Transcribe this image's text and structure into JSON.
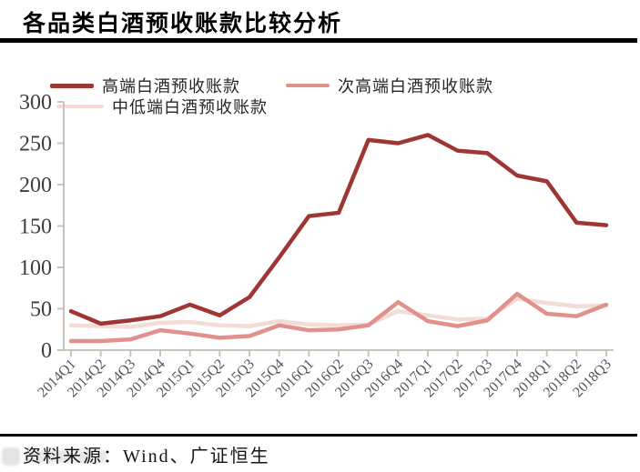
{
  "title": "各品类白酒预收账款比较分析",
  "source_label": "资料来源：Wind、广证恒生",
  "chart_data": {
    "type": "line",
    "title": "各品类白酒预收账款比较分析",
    "categories": [
      "2014Q1",
      "2014Q2",
      "2014Q3",
      "2014Q4",
      "2015Q1",
      "2015Q2",
      "2015Q3",
      "2015Q4",
      "2016Q1",
      "2016Q2",
      "2016Q3",
      "2016Q4",
      "2017Q1",
      "2017Q2",
      "2017Q3",
      "2017Q4",
      "2018Q1",
      "2018Q2",
      "2018Q3"
    ],
    "series": [
      {
        "name": "高端白酒预收账款",
        "color": "#A03634",
        "line_width": 4.5,
        "values": [
          47,
          32,
          36,
          41,
          55,
          42,
          64,
          112,
          162,
          166,
          254,
          250,
          260,
          241,
          238,
          211,
          204,
          154,
          151
        ]
      },
      {
        "name": "次高端白酒预收账款",
        "color": "#E0918C",
        "line_width": 4.5,
        "values": [
          11,
          11,
          13,
          24,
          20,
          15,
          17,
          30,
          24,
          25,
          30,
          58,
          35,
          29,
          36,
          68,
          44,
          41,
          55
        ]
      },
      {
        "name": "中低端白酒预收账款",
        "color": "#F3DCD6",
        "line_width": 4.5,
        "values": [
          30,
          29,
          28,
          33,
          34,
          30,
          29,
          35,
          31,
          30,
          31,
          47,
          42,
          37,
          38,
          62,
          57,
          53,
          54
        ]
      }
    ],
    "ylim": [
      0,
      300
    ],
    "yticks": [
      0,
      50,
      100,
      150,
      200,
      250,
      300
    ],
    "xlabel": "",
    "ylabel": "",
    "grid": false,
    "legend_position": "top",
    "axis_color": "#C8C4BC",
    "xtick_label_color": "#555555",
    "ytick_label_color": "#3d3d3d"
  }
}
